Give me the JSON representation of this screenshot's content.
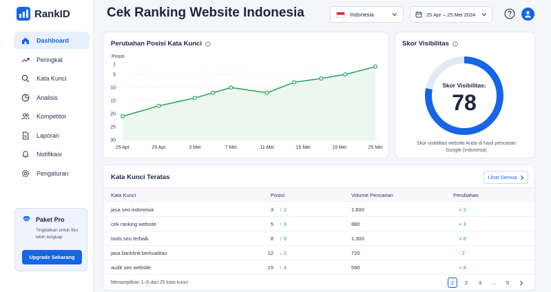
{
  "app": {
    "name": "RankID"
  },
  "header": {
    "title": "Cek Ranking Website Indonesia",
    "country": "Indonesia",
    "date_range": "25 Apr – 25 Mei 2024"
  },
  "sidebar": {
    "items": [
      {
        "label": "Dashboard",
        "icon": "home-icon",
        "active": true
      },
      {
        "label": "Peringkat",
        "icon": "trend-icon"
      },
      {
        "label": "Kata Kunci",
        "icon": "search-icon"
      },
      {
        "label": "Analisis",
        "icon": "pie-chart-icon"
      },
      {
        "label": "Kompetitor",
        "icon": "users-icon"
      },
      {
        "label": "Laporan",
        "icon": "document-icon"
      },
      {
        "label": "Notifikasi",
        "icon": "bell-icon"
      },
      {
        "label": "Pengaturan",
        "icon": "gear-icon"
      }
    ],
    "promo": {
      "title": "Paket Pro",
      "text": "Tingkatkan untuk fitur lebih lengkap",
      "button": "Upgrade Sekarang"
    }
  },
  "position_card": {
    "title": "Perubahan Posisi Kata Kunci"
  },
  "chart_data": {
    "type": "line",
    "title": "Perubahan Posisi Kata Kunci",
    "ylabel": "Posisi",
    "yticks": [
      1,
      5,
      10,
      15,
      20,
      25,
      30
    ],
    "ylim": [
      1,
      30
    ],
    "y_inverted": true,
    "xticks": [
      "25 Apr",
      "29 Apr",
      "3 Mei",
      "7 Mei",
      "11 Mei",
      "15 Mei",
      "19 Mei",
      "25 Mei"
    ],
    "x": [
      "25 Apr",
      "29 Apr",
      "3 Mei",
      "5 Mei",
      "7 Mei",
      "11 Mei",
      "14 Mei",
      "17 Mei",
      "20 Mei",
      "25 Mei"
    ],
    "values": [
      21,
      17,
      14,
      12,
      10,
      12,
      8,
      6.5,
      5,
      2
    ],
    "color": "#23a05a",
    "grid": true
  },
  "visibility": {
    "title": "Skor Visibilitas",
    "label": "Skor Visibilitas:",
    "score": "78",
    "score_fraction": 0.78,
    "description": "Skor visibilitas website Anda di hasil pencarian Google (Indonesia)",
    "color": "#1565e6"
  },
  "keywords": {
    "title": "Kata Kunci Teratas",
    "see_all": "Lihat Semua",
    "headers": [
      "Kata Kunci",
      "Posisi",
      "Volume Pencarian",
      "Perubahan"
    ],
    "rows": [
      {
        "keyword": "jasa seo indonesia",
        "position": "3",
        "delta": "2",
        "dir": "up",
        "volume": "1.600",
        "change": "+ 2"
      },
      {
        "keyword": "cek ranking website",
        "position": "5",
        "delta": "3",
        "dir": "up",
        "volume": "880",
        "change": "+ 3"
      },
      {
        "keyword": "tools seo terbaik",
        "position": "8",
        "delta": "5",
        "dir": "up",
        "volume": "1.300",
        "change": "+ 5"
      },
      {
        "keyword": "jasa backlink berkualitas",
        "position": "12",
        "delta": "2",
        "dir": "down",
        "volume": "720",
        "change": "- 2"
      },
      {
        "keyword": "audit seo website",
        "position": "15",
        "delta": "4",
        "dir": "up",
        "volume": "590",
        "change": "+ 4"
      }
    ],
    "footer": "Menampilkan 1–5 dari 25 kata kunci",
    "pages": [
      "1",
      "2",
      "3",
      "...",
      "5"
    ],
    "current_page": "1"
  }
}
